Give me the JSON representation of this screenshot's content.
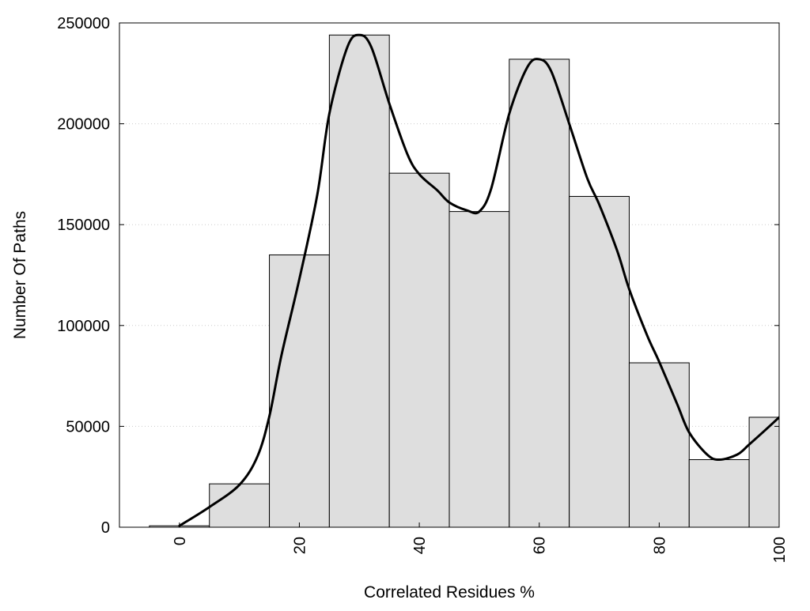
{
  "chart_data": {
    "type": "bar",
    "xlabel": "Correlated Residues %",
    "ylabel": "Number Of Paths",
    "xlim": [
      -10,
      100
    ],
    "ylim": [
      0,
      250000
    ],
    "x_ticks": [
      0,
      20,
      40,
      60,
      80,
      100
    ],
    "y_ticks": [
      0,
      50000,
      100000,
      150000,
      200000,
      250000
    ],
    "grid": "horizontal-dotted",
    "bar_width": 10,
    "bars": [
      {
        "x": 0,
        "value": 700
      },
      {
        "x": 10,
        "value": 21500
      },
      {
        "x": 20,
        "value": 135000
      },
      {
        "x": 30,
        "value": 244000
      },
      {
        "x": 40,
        "value": 175500
      },
      {
        "x": 50,
        "value": 156500
      },
      {
        "x": 60,
        "value": 232000
      },
      {
        "x": 70,
        "value": 164000
      },
      {
        "x": 80,
        "value": 81500
      },
      {
        "x": 90,
        "value": 33500
      },
      {
        "x": 100,
        "value": 54500
      }
    ],
    "curve": {
      "x": [
        0,
        5,
        10,
        13,
        15,
        17,
        20,
        23,
        25,
        28,
        30,
        32,
        35,
        38,
        40,
        43,
        45,
        48,
        50,
        52,
        55,
        58,
        60,
        62,
        65,
        68,
        70,
        73,
        75,
        78,
        80,
        83,
        85,
        88,
        90,
        93,
        95,
        98,
        100
      ],
      "y": [
        700,
        10000,
        21000,
        35000,
        55000,
        85000,
        123000,
        165000,
        205000,
        238000,
        244000,
        238000,
        210000,
        185000,
        175000,
        167000,
        161000,
        157000,
        156500,
        168000,
        205000,
        228000,
        232000,
        226000,
        200000,
        173000,
        160000,
        137000,
        118000,
        95000,
        82000,
        61000,
        47000,
        36000,
        33500,
        36000,
        41000,
        49000,
        54500
      ]
    },
    "colors": {
      "bar_fill": "#dedede",
      "bar_stroke": "#000000",
      "curve": "#000000",
      "grid": "#cccccc"
    }
  }
}
